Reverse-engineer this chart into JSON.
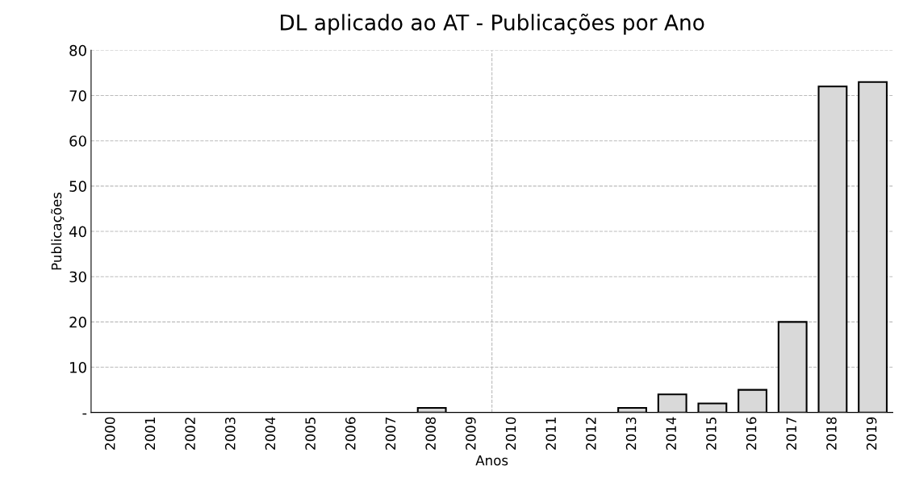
{
  "chart_data": {
    "type": "bar",
    "title": "DL aplicado ao AT - Publicações por Ano",
    "xlabel": "Anos",
    "ylabel": "Publicações",
    "categories": [
      "2000",
      "2001",
      "2002",
      "2003",
      "2004",
      "2005",
      "2006",
      "2007",
      "2008",
      "2009",
      "2010",
      "2011",
      "2012",
      "2013",
      "2014",
      "2015",
      "2016",
      "2017",
      "2018",
      "2019"
    ],
    "values": [
      0,
      0,
      0,
      0,
      0,
      0,
      0,
      0,
      1,
      0,
      0,
      0,
      0,
      1,
      4,
      2,
      5,
      20,
      72,
      73
    ],
    "color": "#d9d9d9",
    "ylim": [
      0,
      80
    ],
    "yticks": [
      {
        "value": 0,
        "label": "-"
      },
      10,
      20,
      30,
      40,
      50,
      60,
      70,
      80
    ],
    "grid": true
  }
}
